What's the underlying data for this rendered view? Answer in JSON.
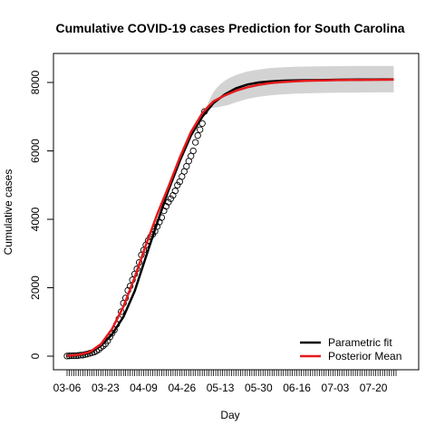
{
  "chart_data": {
    "type": "line",
    "title": "Cumulative COVID-19 cases Prediction for South Carolina",
    "xlabel": "Day",
    "ylabel": "Cumulative cases",
    "start_date": "2020-03-06",
    "x_tick_labels": [
      "03-06",
      "03-23",
      "04-09",
      "04-26",
      "05-13",
      "05-30",
      "06-16",
      "07-03",
      "07-20"
    ],
    "x_tick_days": [
      0,
      17,
      34,
      51,
      68,
      85,
      102,
      119,
      136
    ],
    "x_range_days": [
      0,
      146
    ],
    "ylim": [
      0,
      8800
    ],
    "y_ticks": [
      0,
      2000,
      4000,
      6000,
      8000
    ],
    "legend": {
      "position": "bottom-right",
      "entries": [
        {
          "name": "Parametric fit",
          "color": "#000000"
        },
        {
          "name": "Posterior Mean",
          "color": "#e41a1c"
        }
      ]
    },
    "colors": {
      "parametric": "#000000",
      "posterior": "#e41a1c",
      "band": "#d3d3d3",
      "observed": "#000000"
    },
    "observed": {
      "days": [
        0,
        1,
        2,
        3,
        4,
        5,
        6,
        7,
        8,
        9,
        10,
        11,
        12,
        13,
        14,
        15,
        16,
        17,
        18,
        19,
        20,
        21,
        22,
        23,
        24,
        25,
        26,
        27,
        28,
        29,
        30,
        31,
        32,
        33,
        34,
        35,
        36,
        37,
        38,
        39,
        40,
        41,
        42,
        43,
        44,
        45,
        46,
        47,
        48,
        49,
        50,
        51,
        52,
        53,
        54,
        55,
        56,
        57,
        58,
        59,
        60,
        61
      ],
      "cases": [
        2,
        7,
        10,
        12,
        13,
        19,
        28,
        33,
        47,
        60,
        81,
        100,
        120,
        150,
        190,
        250,
        300,
        360,
        450,
        560,
        670,
        770,
        930,
        1090,
        1300,
        1550,
        1700,
        1920,
        2050,
        2230,
        2400,
        2550,
        2740,
        2960,
        3100,
        3250,
        3380,
        3480,
        3560,
        3650,
        3790,
        3920,
        4050,
        4250,
        4380,
        4500,
        4600,
        4700,
        4830,
        5000,
        5100,
        5250,
        5400,
        5550,
        5700,
        5850,
        6000,
        6250,
        6450,
        6620,
        6800,
        7150
      ]
    },
    "parametric_fit": {
      "days": [
        0,
        5,
        10,
        15,
        20,
        25,
        30,
        35,
        40,
        45,
        50,
        55,
        60,
        65,
        70,
        75,
        80,
        85,
        90,
        95,
        100,
        105,
        110,
        115,
        120,
        125,
        130,
        135,
        140,
        145
      ],
      "values": [
        10,
        35,
        100,
        300,
        640,
        1150,
        1900,
        2900,
        3900,
        4850,
        5700,
        6450,
        7000,
        7400,
        7650,
        7830,
        7940,
        8000,
        8030,
        8050,
        8060,
        8065,
        8070,
        8075,
        8080,
        8083,
        8085,
        8087,
        8089,
        8090
      ]
    },
    "posterior_mean": {
      "days": [
        0,
        5,
        10,
        15,
        20,
        25,
        30,
        35,
        40,
        45,
        50,
        55,
        60,
        62,
        65,
        70,
        75,
        80,
        85,
        90,
        95,
        100,
        105,
        110,
        115,
        120,
        125,
        130,
        135,
        140,
        145
      ],
      "values": [
        10,
        40,
        120,
        350,
        800,
        1450,
        2300,
        3250,
        4150,
        4950,
        5800,
        6550,
        7100,
        7250,
        7450,
        7620,
        7760,
        7860,
        7930,
        7980,
        8010,
        8030,
        8045,
        8055,
        8062,
        8068,
        8072,
        8075,
        8078,
        8080,
        8082
      ]
    },
    "credible_band": {
      "days": [
        61,
        62,
        63,
        64,
        65,
        66,
        67,
        68,
        70,
        72,
        75,
        80,
        85,
        90,
        95,
        100,
        110,
        120,
        130,
        140,
        145
      ],
      "lower": [
        7150,
        7200,
        7230,
        7250,
        7260,
        7270,
        7280,
        7290,
        7320,
        7350,
        7420,
        7520,
        7580,
        7620,
        7650,
        7670,
        7690,
        7700,
        7705,
        7710,
        7710
      ],
      "upper": [
        7150,
        7300,
        7450,
        7600,
        7720,
        7810,
        7880,
        7950,
        8050,
        8130,
        8220,
        8320,
        8380,
        8420,
        8440,
        8455,
        8470,
        8478,
        8482,
        8485,
        8486
      ]
    }
  }
}
